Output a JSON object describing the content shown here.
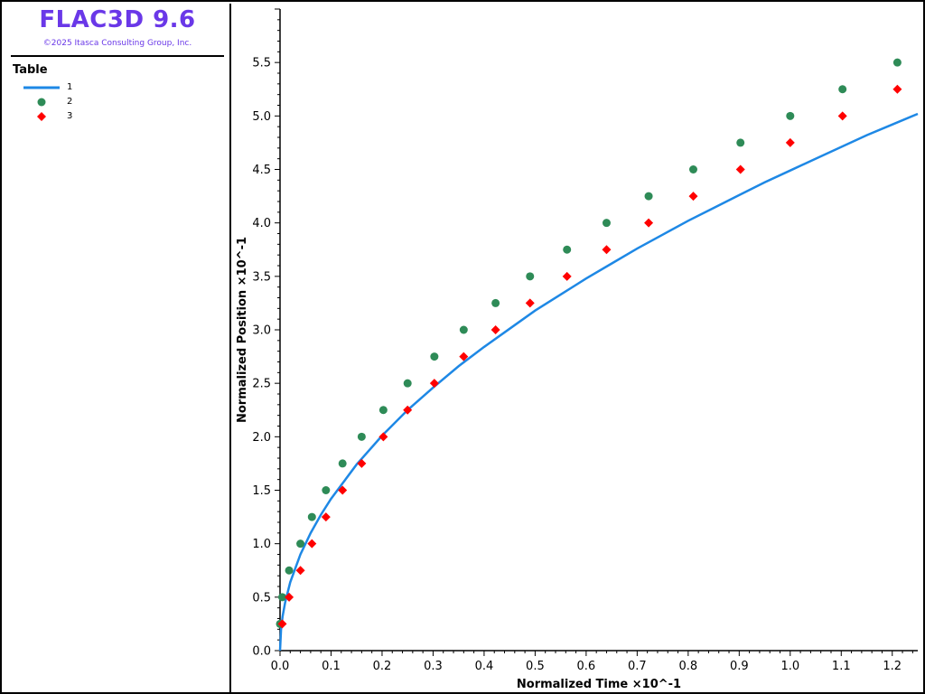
{
  "app": {
    "title": "FLAC3D 9.6",
    "copyright": "©2025 Itasca Consulting Group, Inc."
  },
  "legend": {
    "heading": "Table",
    "items": [
      {
        "label": "1",
        "marker": "line",
        "color": "#1e88e5"
      },
      {
        "label": "2",
        "marker": "circle",
        "color": "#2e8b57"
      },
      {
        "label": "3",
        "marker": "diamond",
        "color": "#ff0000"
      }
    ]
  },
  "chart_data": {
    "type": "scatter",
    "xlabel": "Normalized Time ×10^-1",
    "ylabel": "Normalized Position ×10^-1",
    "xlim": [
      0.0,
      1.25
    ],
    "ylim": [
      0.0,
      6.0
    ],
    "x_ticks": [
      "0.0",
      "0.1",
      "0.2",
      "0.3",
      "0.4",
      "0.5",
      "0.6",
      "0.7",
      "0.8",
      "0.9",
      "1.0",
      "1.1",
      "1.2"
    ],
    "y_ticks": [
      "0.0",
      "0.5",
      "1.0",
      "1.5",
      "2.0",
      "2.5",
      "3.0",
      "3.5",
      "4.0",
      "4.5",
      "5.0",
      "5.5"
    ],
    "grid": false,
    "legend_position": "left-panel",
    "series": [
      {
        "name": "1",
        "type": "line",
        "color": "#1e88e5",
        "x": [
          0.0,
          0.002,
          0.005,
          0.01,
          0.02,
          0.04,
          0.06,
          0.08,
          0.1,
          0.15,
          0.2,
          0.25,
          0.3,
          0.35,
          0.4,
          0.45,
          0.5,
          0.55,
          0.6,
          0.65,
          0.7,
          0.75,
          0.8,
          0.85,
          0.9,
          0.95,
          1.0,
          1.05,
          1.1,
          1.15,
          1.2,
          1.25
        ],
        "y": [
          0.0,
          0.2,
          0.32,
          0.45,
          0.64,
          0.9,
          1.1,
          1.27,
          1.42,
          1.74,
          2.01,
          2.25,
          2.46,
          2.66,
          2.84,
          3.01,
          3.18,
          3.33,
          3.48,
          3.62,
          3.76,
          3.89,
          4.02,
          4.14,
          4.26,
          4.38,
          4.49,
          4.6,
          4.71,
          4.82,
          4.92,
          5.02
        ]
      },
      {
        "name": "2",
        "type": "scatter",
        "marker": "circle",
        "color": "#2e8b57",
        "x": [
          0.0,
          0.0044,
          0.0178,
          0.04,
          0.0625,
          0.09,
          0.1225,
          0.16,
          0.2025,
          0.25,
          0.3025,
          0.36,
          0.4225,
          0.49,
          0.5625,
          0.64,
          0.7225,
          0.81,
          0.9025,
          1.0,
          1.1025,
          1.21
        ],
        "y": [
          0.25,
          0.5,
          0.75,
          1.0,
          1.25,
          1.5,
          1.75,
          2.0,
          2.25,
          2.5,
          2.75,
          3.0,
          3.25,
          3.5,
          3.75,
          4.0,
          4.25,
          4.5,
          4.75,
          5.0,
          5.25,
          5.5
        ]
      },
      {
        "name": "3",
        "type": "scatter",
        "marker": "diamond",
        "color": "#ff0000",
        "x": [
          0.0044,
          0.0178,
          0.04,
          0.0625,
          0.09,
          0.1225,
          0.16,
          0.2025,
          0.25,
          0.3025,
          0.36,
          0.4225,
          0.49,
          0.5625,
          0.64,
          0.7225,
          0.81,
          0.9025,
          1.0,
          1.1025,
          1.21
        ],
        "y": [
          0.25,
          0.5,
          0.75,
          1.0,
          1.25,
          1.5,
          1.75,
          2.0,
          2.25,
          2.5,
          2.75,
          3.0,
          3.25,
          3.5,
          3.75,
          4.0,
          4.25,
          4.5,
          4.75,
          5.0,
          5.25
        ]
      }
    ]
  }
}
